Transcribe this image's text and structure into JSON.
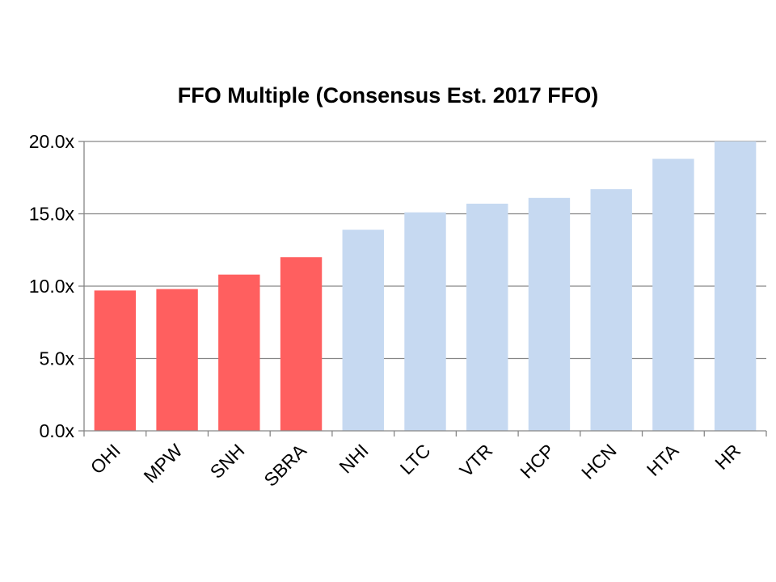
{
  "chart_data": {
    "type": "bar",
    "title": "FFO Multiple (Consensus Est. 2017 FFO)",
    "xlabel": "",
    "ylabel": "",
    "categories": [
      "OHI",
      "MPW",
      "SNH",
      "SBRA",
      "NHI",
      "LTC",
      "VTR",
      "HCP",
      "HCN",
      "HTA",
      "HR"
    ],
    "values": [
      9.7,
      9.8,
      10.8,
      12.0,
      13.9,
      15.1,
      15.7,
      16.1,
      16.7,
      18.8,
      20.0
    ],
    "bar_colors": [
      "#ff5f5f",
      "#ff5f5f",
      "#ff5f5f",
      "#ff5f5f",
      "#c6d9f1",
      "#c6d9f1",
      "#c6d9f1",
      "#c6d9f1",
      "#c6d9f1",
      "#c6d9f1",
      "#c6d9f1"
    ],
    "ylim": [
      0,
      20
    ],
    "yticks": [
      "0.0x",
      "5.0x",
      "10.0x",
      "15.0x",
      "20.0x"
    ],
    "grid": true,
    "legend": "none"
  }
}
